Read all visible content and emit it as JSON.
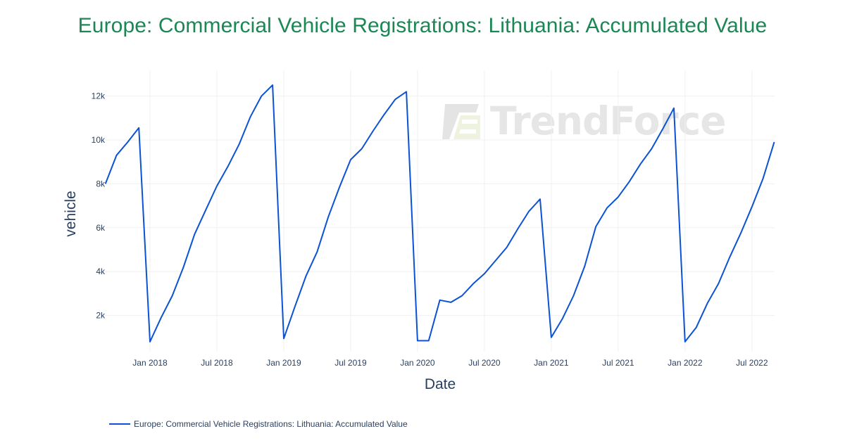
{
  "chart_data": {
    "type": "line",
    "title": "Europe: Commercial Vehicle Registrations: Lithuania: Accumulated Value",
    "xlabel": "Date",
    "ylabel": "vehicle",
    "ylim": [
      0,
      13000
    ],
    "y_ticks": [
      "2k",
      "4k",
      "6k",
      "8k",
      "10k",
      "12k"
    ],
    "y_tick_values": [
      2000,
      4000,
      6000,
      8000,
      10000,
      12000
    ],
    "x_ticks": [
      "Jan 2018",
      "Jul 2018",
      "Jan 2019",
      "Jul 2019",
      "Jan 2020",
      "Jul 2020",
      "Jan 2021",
      "Jul 2021",
      "Jan 2022",
      "Jul 2022"
    ],
    "grid": true,
    "legend_position": "bottom-left",
    "series": [
      {
        "name": "Europe: Commercial Vehicle Registrations: Lithuania: Accumulated Value",
        "color": "#0b52d4",
        "x": [
          "2017-09",
          "2017-10",
          "2017-11",
          "2017-12",
          "2018-01",
          "2018-02",
          "2018-03",
          "2018-04",
          "2018-05",
          "2018-06",
          "2018-07",
          "2018-08",
          "2018-09",
          "2018-10",
          "2018-11",
          "2018-12",
          "2019-01",
          "2019-02",
          "2019-03",
          "2019-04",
          "2019-05",
          "2019-06",
          "2019-07",
          "2019-08",
          "2019-09",
          "2019-10",
          "2019-11",
          "2019-12",
          "2020-01",
          "2020-02",
          "2020-03",
          "2020-04",
          "2020-05",
          "2020-06",
          "2020-07",
          "2020-08",
          "2020-09",
          "2020-10",
          "2020-11",
          "2020-12",
          "2021-01",
          "2021-02",
          "2021-03",
          "2021-04",
          "2021-05",
          "2021-06",
          "2021-07",
          "2021-08",
          "2021-09",
          "2021-10",
          "2021-11",
          "2021-12",
          "2022-01",
          "2022-02",
          "2022-03",
          "2022-04",
          "2022-05",
          "2022-06",
          "2022-07",
          "2022-08",
          "2022-09"
        ],
        "values": [
          8000,
          9300,
          9900,
          10550,
          800,
          1900,
          2900,
          4200,
          5700,
          6800,
          7900,
          8800,
          9800,
          11050,
          12000,
          12500,
          950,
          2400,
          3800,
          4900,
          6500,
          7850,
          9100,
          9600,
          10400,
          11150,
          11850,
          12200,
          850,
          850,
          2700,
          2600,
          2900,
          3450,
          3900,
          4500,
          5100,
          5950,
          6750,
          7300,
          1000,
          1850,
          2900,
          4250,
          6050,
          6900,
          7400,
          8100,
          8900,
          9600,
          10500,
          11450,
          800,
          1450,
          2550,
          3450,
          4650,
          5750,
          6950,
          8250,
          9900
        ]
      }
    ]
  },
  "watermark": {
    "text": "TrendForce"
  },
  "legend": {
    "label": "Europe: Commercial Vehicle Registrations: Lithuania: Accumulated Value"
  }
}
